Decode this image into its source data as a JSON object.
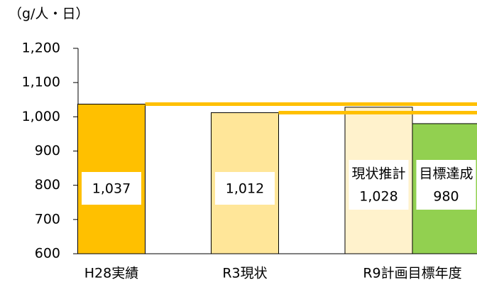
{
  "chart_data": {
    "type": "bar",
    "y_label": "（g/人・日）",
    "categories": [
      "H28実績",
      "R3現状",
      "R9計画目標年度"
    ],
    "series": [
      {
        "color": "#ffc000",
        "values": [
          1037,
          null,
          null
        ],
        "value_labels": [
          "1,037",
          null,
          null
        ]
      },
      {
        "color": "#ffe699",
        "values": [
          null,
          1012,
          null
        ],
        "value_labels": [
          null,
          "1,012",
          null
        ]
      },
      {
        "name": "現状推計",
        "color": "#fff2cc",
        "values": [
          null,
          null,
          1028
        ],
        "value_labels": [
          null,
          null,
          "1,028"
        ]
      },
      {
        "name": "目標達成",
        "color": "#92d050",
        "values": [
          null,
          null,
          980
        ]
      }
    ],
    "ylim": [
      600,
      1200
    ],
    "yticks": [
      {
        "value": 600,
        "label": "600"
      },
      {
        "value": 700,
        "label": "700"
      },
      {
        "value": 800,
        "label": "800"
      },
      {
        "value": 900,
        "label": "900"
      },
      {
        "value": 1000,
        "label": "1,000"
      },
      {
        "value": 1100,
        "label": "1,100"
      },
      {
        "value": 1200,
        "label": "1,200"
      }
    ]
  }
}
